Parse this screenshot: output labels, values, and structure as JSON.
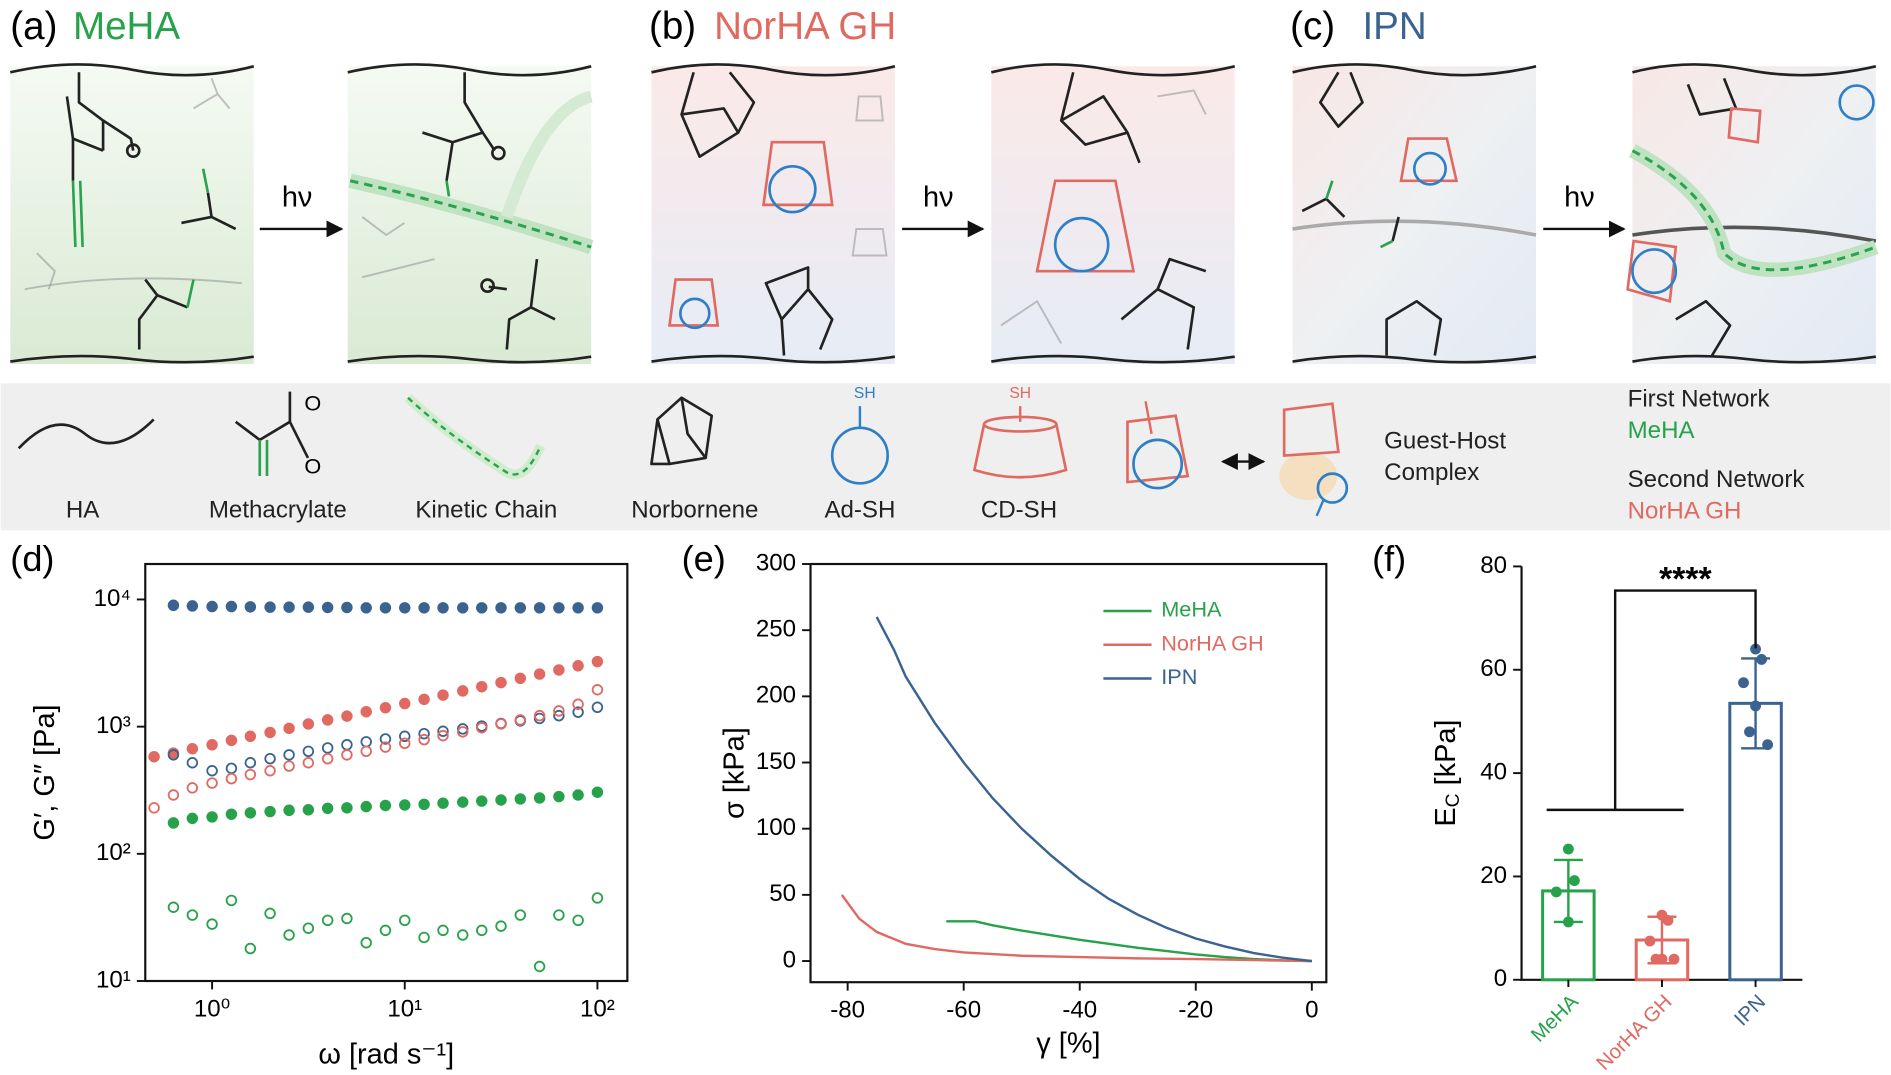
{
  "schematic": {
    "panels": [
      {
        "label": "(a)",
        "title": "MeHA"
      },
      {
        "label": "(b)",
        "title": "NorHA GH"
      },
      {
        "label": "(c)",
        "title": "IPN"
      }
    ],
    "arrow_label": "hν",
    "legend": {
      "items": [
        "HA",
        "Methacrylate",
        "Kinetic Chain",
        "Norbornene",
        "Ad-SH",
        "CD-SH"
      ],
      "icon_labels": [
        "O",
        "O",
        "SH",
        "SH"
      ],
      "complex": [
        "Guest-Host",
        "Complex"
      ],
      "networks": [
        {
          "heading": "First Network",
          "name": "MeHA"
        },
        {
          "heading": "Second Network",
          "name": "NorHA GH"
        }
      ]
    }
  },
  "chart_data": [
    {
      "type": "scatter",
      "panel_label": "(d)",
      "xlabel": "ω [rad s⁻¹]",
      "ylabel": "G′, G″ [Pa]",
      "xscale": "log",
      "yscale": "log",
      "xlim": [
        0.45,
        143
      ],
      "ylim": [
        10,
        19000
      ],
      "xticks": [
        {
          "value": 1,
          "label": "10⁰"
        },
        {
          "value": 10,
          "label": "10¹"
        },
        {
          "value": 100,
          "label": "10²"
        }
      ],
      "yticks": [
        {
          "value": 10,
          "label": "10¹"
        },
        {
          "value": 100,
          "label": "10²"
        },
        {
          "value": 1000,
          "label": "10³"
        },
        {
          "value": 10000,
          "label": "10⁴"
        }
      ],
      "x": [
        0.5,
        0.63,
        0.79,
        1,
        1.26,
        1.58,
        2,
        2.51,
        3.16,
        3.98,
        5.01,
        6.31,
        7.94,
        10,
        12.6,
        15.8,
        20,
        25.1,
        31.6,
        39.8,
        50.1,
        63.1,
        79.4,
        100
      ],
      "series": [
        {
          "color": "#3b6390",
          "marker": "filled",
          "values": [
            null,
            9000,
            8900,
            8800,
            8800,
            8750,
            8700,
            8700,
            8700,
            8650,
            8650,
            8600,
            8600,
            8600,
            8600,
            8600,
            8600,
            8600,
            8600,
            8600,
            8600,
            8600,
            8600,
            8600
          ]
        },
        {
          "color": "#e06a62",
          "marker": "filled",
          "values": [
            580,
            620,
            670,
            720,
            780,
            840,
            900,
            970,
            1050,
            1130,
            1210,
            1310,
            1410,
            1520,
            1640,
            1770,
            1910,
            2060,
            2220,
            2400,
            2590,
            2790,
            3010,
            3250
          ]
        },
        {
          "color": "#3b6390",
          "marker": "open",
          "values": [
            null,
            600,
            520,
            450,
            470,
            520,
            560,
            600,
            640,
            680,
            720,
            760,
            800,
            840,
            880,
            920,
            960,
            1010,
            1060,
            1110,
            1160,
            1220,
            1300,
            1420
          ]
        },
        {
          "color": "#e06a62",
          "marker": "open",
          "values": [
            230,
            290,
            330,
            360,
            390,
            420,
            450,
            490,
            520,
            560,
            600,
            640,
            690,
            740,
            790,
            850,
            910,
            980,
            1050,
            1130,
            1220,
            1330,
            1500,
            1950
          ]
        },
        {
          "color": "#27a24b",
          "marker": "filled",
          "values": [
            null,
            175,
            190,
            195,
            205,
            210,
            215,
            220,
            222,
            228,
            230,
            235,
            240,
            242,
            245,
            250,
            255,
            260,
            265,
            270,
            275,
            282,
            290,
            305
          ]
        },
        {
          "color": "#27a24b",
          "marker": "open",
          "values": [
            null,
            38,
            33,
            28,
            43,
            18,
            34,
            23,
            26,
            30,
            31,
            20,
            25,
            30,
            22,
            25,
            23,
            25,
            27,
            33,
            13,
            33,
            30,
            45
          ]
        }
      ]
    },
    {
      "type": "line",
      "panel_label": "(e)",
      "xlabel": "γ [%]",
      "ylabel": "σ [kPa]",
      "xlim": [
        -86.4,
        2.5
      ],
      "ylim": [
        -16,
        300
      ],
      "xticks": [
        -80,
        -60,
        -40,
        -20,
        0
      ],
      "yticks": [
        0,
        50,
        100,
        150,
        200,
        250,
        300
      ],
      "legend": "upper right",
      "series": [
        {
          "name": "MeHA",
          "color": "#27a24b",
          "x": [
            -63,
            -58,
            -55,
            -50,
            -45,
            -40,
            -35,
            -30,
            -25,
            -20,
            -15,
            -10,
            -5,
            0
          ],
          "values": [
            30,
            30,
            27,
            23,
            19.5,
            16,
            13,
            10,
            7.5,
            5,
            3,
            1.5,
            0.5,
            0
          ]
        },
        {
          "name": "NorHA GH",
          "color": "#e06a62",
          "x": [
            -81,
            -78,
            -75,
            -70,
            -65,
            -60,
            -50,
            -40,
            -30,
            -20,
            -10,
            0
          ],
          "values": [
            50,
            32,
            22,
            13,
            9,
            6.5,
            4,
            3,
            2,
            1.5,
            0.7,
            0
          ]
        },
        {
          "name": "IPN",
          "color": "#3b6390",
          "x": [
            -75,
            -72,
            -70,
            -65,
            -60,
            -55,
            -50,
            -45,
            -40,
            -35,
            -30,
            -25,
            -20,
            -15,
            -10,
            -5,
            0
          ],
          "values": [
            260,
            235,
            215,
            180,
            150,
            123,
            100,
            80,
            62,
            47,
            35,
            25,
            17,
            11,
            6,
            2.5,
            0
          ]
        }
      ]
    },
    {
      "type": "bar",
      "panel_label": "(f)",
      "ylabel": [
        "E",
        "C",
        " [kPa]"
      ],
      "categories": [
        "MeHA",
        "NorHA GH",
        "IPN"
      ],
      "colors": [
        "#27a24b",
        "#e06a62",
        "#3b6390"
      ],
      "values": [
        17.2,
        7.7,
        53.5
      ],
      "errors": [
        6,
        4.5,
        8.7
      ],
      "points": [
        [
          25.3,
          19.2,
          17,
          11.2
        ],
        [
          12.5,
          11.5,
          7.5,
          4,
          4,
          4
        ],
        [
          64,
          62,
          57.5,
          53,
          48,
          45.5
        ]
      ],
      "ylim": [
        0,
        80
      ],
      "yticks": [
        0,
        20,
        40,
        60,
        80
      ],
      "annotation": "****"
    }
  ]
}
